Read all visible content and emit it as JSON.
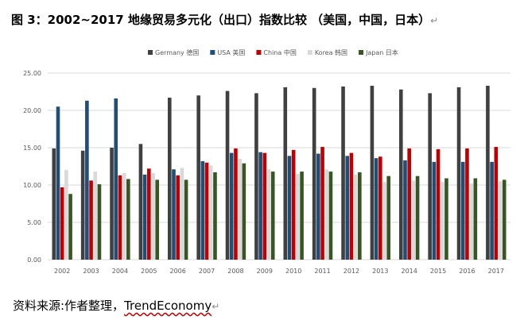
{
  "title": "图 3：2002~2017 地缘贸易多元化（出口）指数比较 （美国，中国，日本）",
  "paragraph_mark": "↵",
  "source": {
    "prefix": "资料来源:作者整理，",
    "name": "TrendEconomy",
    "mark": "↵"
  },
  "colors": {
    "Germany": "#404040",
    "USA": "#1f4e79",
    "China": "#c00000",
    "Korea": "#d9d9d9",
    "Japan": "#375623",
    "grid": "#d9d9d9",
    "axis_text": "#595959"
  },
  "chart_data": {
    "type": "bar",
    "categories": [
      "2002",
      "2003",
      "2004",
      "2005",
      "2006",
      "2007",
      "2008",
      "2009",
      "2010",
      "2011",
      "2012",
      "2013",
      "2014",
      "2015",
      "2016",
      "2017"
    ],
    "ylim": [
      0,
      25
    ],
    "yticks": [
      "0.00",
      "5.00",
      "10.00",
      "15.00",
      "20.00",
      "25.00"
    ],
    "grid": true,
    "legend_position": "top",
    "series": [
      {
        "name": "Germany 德国",
        "key": "Germany",
        "values": [
          14.9,
          14.6,
          15.0,
          15.5,
          21.7,
          22.0,
          22.6,
          22.3,
          23.1,
          23.0,
          23.2,
          23.3,
          22.8,
          22.3,
          23.1,
          23.3
        ]
      },
      {
        "name": "USA 美国",
        "key": "USA",
        "values": [
          20.5,
          21.3,
          21.6,
          11.4,
          12.1,
          13.2,
          14.3,
          14.4,
          13.9,
          14.2,
          13.9,
          13.6,
          13.3,
          13.1,
          13.1,
          13.1
        ]
      },
      {
        "name": "China 中国",
        "key": "China",
        "values": [
          9.7,
          10.6,
          11.3,
          12.2,
          11.3,
          13.0,
          14.9,
          14.3,
          14.7,
          15.1,
          14.3,
          13.8,
          14.9,
          14.8,
          14.9,
          15.1
        ]
      },
      {
        "name": "Korea 韩国",
        "key": "Korea",
        "values": [
          12.0,
          11.8,
          11.6,
          11.6,
          12.3,
          12.6,
          13.5,
          12.1,
          11.5,
          12.1,
          11.4,
          10.4,
          10.6,
          10.4,
          10.2,
          10.5
        ]
      },
      {
        "name": "Japan 日本",
        "key": "Japan",
        "values": [
          8.8,
          10.1,
          10.8,
          10.7,
          10.7,
          11.7,
          12.9,
          11.8,
          11.8,
          11.8,
          11.7,
          11.2,
          11.2,
          10.9,
          10.9,
          10.7
        ]
      }
    ]
  }
}
